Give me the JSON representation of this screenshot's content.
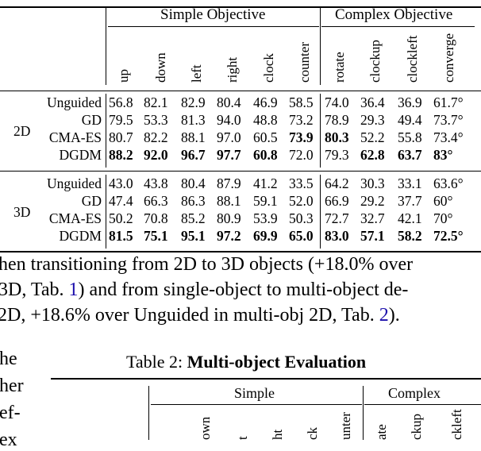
{
  "table1": {
    "group_headers": {
      "simple": "Simple Objective",
      "complex": "Complex Objective"
    },
    "columns": [
      "up",
      "down",
      "left",
      "right",
      "clock",
      "counter",
      "rotate",
      "clockup",
      "clockleft",
      "converge"
    ],
    "sections": [
      {
        "label": "2D",
        "rows": [
          {
            "method": "Unguided",
            "values": [
              "56.8",
              "82.1",
              "82.9",
              "80.4",
              "46.9",
              "58.5",
              "74.0",
              "36.4",
              "36.9",
              "61.7°"
            ],
            "bold": []
          },
          {
            "method": "GD",
            "values": [
              "79.5",
              "53.3",
              "81.3",
              "94.0",
              "48.8",
              "73.2",
              "78.9",
              "29.3",
              "49.4",
              "73.7°"
            ],
            "bold": []
          },
          {
            "method": "CMA-ES",
            "values": [
              "80.7",
              "82.2",
              "88.1",
              "97.0",
              "60.5",
              "73.9",
              "80.3",
              "52.2",
              "55.8",
              "73.4°"
            ],
            "bold": [
              5,
              6
            ]
          },
          {
            "method": "DGDM",
            "values": [
              "88.2",
              "92.0",
              "96.7",
              "97.7",
              "60.8",
              "72.0",
              "79.3",
              "62.8",
              "63.7",
              "83°"
            ],
            "bold": [
              0,
              1,
              2,
              3,
              4,
              7,
              8,
              9
            ]
          }
        ]
      },
      {
        "label": "3D",
        "rows": [
          {
            "method": "Unguided",
            "values": [
              "43.0",
              "43.8",
              "80.4",
              "87.9",
              "41.2",
              "33.5",
              "64.2",
              "30.3",
              "33.1",
              "63.6°"
            ],
            "bold": []
          },
          {
            "method": "GD",
            "values": [
              "47.4",
              "66.3",
              "86.3",
              "88.1",
              "59.1",
              "52.0",
              "66.9",
              "29.2",
              "37.7",
              "60°"
            ],
            "bold": []
          },
          {
            "method": "CMA-ES",
            "values": [
              "50.2",
              "70.8",
              "85.2",
              "80.9",
              "53.9",
              "50.3",
              "72.7",
              "32.7",
              "42.1",
              "70°"
            ],
            "bold": []
          },
          {
            "method": "DGDM",
            "values": [
              "81.5",
              "75.1",
              "95.1",
              "97.2",
              "69.9",
              "65.0",
              "83.0",
              "57.1",
              "58.2",
              "72.5°"
            ],
            "bold": [
              0,
              1,
              2,
              3,
              4,
              5,
              6,
              7,
              8,
              9
            ]
          }
        ]
      }
    ]
  },
  "paragraph": {
    "line1": "hen transitioning from 2D to 3D objects (+18.0% over",
    "line2_a": " 3D, Tab. ",
    "line2_link": "1",
    "line2_b": ") and from single-object to multi-object de-",
    "line3_a": "2D, +18.6% over Unguided in multi-obj 2D, Tab. ",
    "line3_link": "2",
    "line3_b": ")."
  },
  "side_fragments": [
    "he",
    "her",
    "ef-",
    "ex"
  ],
  "table2": {
    "title_prefix": "Table 2: ",
    "title_bold": "Multi-object Evaluation",
    "group_headers": {
      "simple": "Simple",
      "complex": "Complex"
    },
    "columns_partial": [
      "own",
      "t",
      "ht",
      "ck",
      "unter",
      "ate",
      "ckup",
      "ckleft"
    ]
  }
}
